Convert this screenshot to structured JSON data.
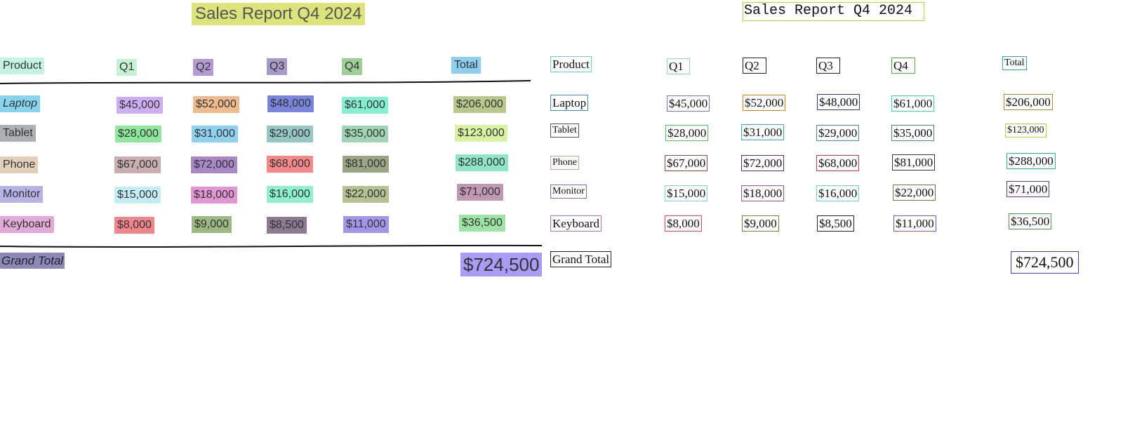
{
  "report": {
    "title": "Sales Report Q4 2024",
    "headers": {
      "product": "Product",
      "q1": "Q1",
      "q2": "Q2",
      "q3": "Q3",
      "q4": "Q4",
      "total": "Total"
    },
    "rows": [
      {
        "product": "Laptop",
        "q1": "$45,000",
        "q2": "$52,000",
        "q3": "$48,000",
        "q4": "$61,000",
        "total": "$206,000"
      },
      {
        "product": "Tablet",
        "q1": "$28,000",
        "q2": "$31,000",
        "q3": "$29,000",
        "q4": "$35,000",
        "total": "$123,000"
      },
      {
        "product": "Phone",
        "q1": "$67,000",
        "q2": "$72,000",
        "q3": "$68,000",
        "q4": "$81,000",
        "total": "$288,000"
      },
      {
        "product": "Monitor",
        "q1": "$15,000",
        "q2": "$18,000",
        "q3": "$16,000",
        "q4": "$22,000",
        "total": "$71,000"
      },
      {
        "product": "Keyboard",
        "q1": "$8,000",
        "q2": "$9,000",
        "q3": "$8,500",
        "q4": "$11,000",
        "total": "$36,500"
      }
    ],
    "grand_total_label": "Grand Total",
    "grand_total_value": "$724,500"
  },
  "colors": {
    "left": {
      "title": "#dbe47a",
      "head_product": "#c3f3e2",
      "head_q1": "#c6f1d2",
      "head_q2": "#b39ad1",
      "head_q3": "#a69bc8",
      "head_q4": "#9fcf97",
      "head_total": "#8ecfef",
      "row_product": [
        "#88d4ee",
        "#aab0b3",
        "#e1d0b8",
        "#b7b2e6",
        "#e2abd7"
      ],
      "row_q1": [
        "#cdaef2",
        "#8ee79c",
        "#c9aeb0",
        "#c4ecf5",
        "#f0868b"
      ],
      "row_q2": [
        "#edbb8d",
        "#8fd0f0",
        "#a987c4",
        "#e195d3",
        "#9db983"
      ],
      "row_q3": [
        "#7a86dc",
        "#96c7c4",
        "#f58888",
        "#8ff0cf",
        "#8b7a92"
      ],
      "row_q4": [
        "#84f0d1",
        "#a1d3b5",
        "#99a585",
        "#b4c192",
        "#a595e8"
      ],
      "row_total": [
        "#b8c88d",
        "#d9f3a3",
        "#8ee5c9",
        "#c098b3",
        "#9ee3a6"
      ],
      "grand_label": "#8c89b8",
      "grand_value": "#a99cf6"
    },
    "right": {
      "title": "#c4c94a",
      "head_product": "#6fd1c2",
      "head_q1": "#8ad7b0",
      "head_q2": "#222222",
      "head_q3": "#222222",
      "head_q4": "#53a84c",
      "head_total": "#3b9bd1",
      "row_product": [
        "#3f8fc7",
        "#555555",
        "#c7a98a",
        "#7a6bd1",
        "#c76bb0"
      ],
      "row_q1": [
        "#8c6bd1",
        "#53c45a",
        "#8a4a4a",
        "#7fd0e3",
        "#d14a5a"
      ],
      "row_q2": [
        "#d1871f",
        "#3fa2d6",
        "#5a2a7a",
        "#a84fa8",
        "#6a8a3a"
      ],
      "row_q3": [
        "#2a3a8a",
        "#4a8a8a",
        "#c43a4a",
        "#6fd6c0",
        "#222222"
      ],
      "row_q4": [
        "#3fd1b0",
        "#4a8a6a",
        "#333333",
        "#6a7a3a",
        "#6a5ac4"
      ],
      "row_total": [
        "#9a8a3a",
        "#b4d04a",
        "#3ab0a0",
        "#7a3a6a",
        "#4a9a4a"
      ],
      "grand_label": "#222222",
      "grand_value": "#4a3ac4"
    }
  }
}
